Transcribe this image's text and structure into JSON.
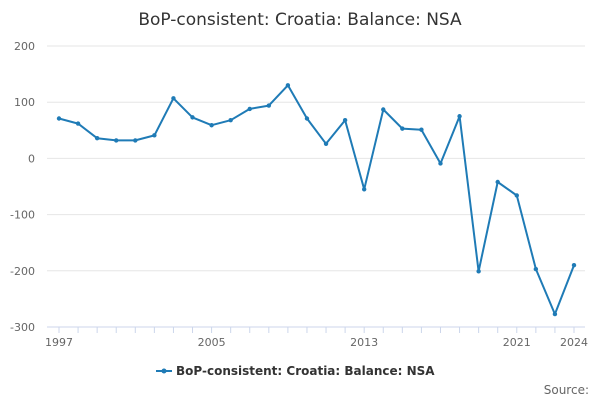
{
  "chart_data": {
    "type": "line",
    "title": "BoP-consistent: Croatia: Balance: NSA",
    "xlabel": "",
    "ylabel": "",
    "x": [
      1997,
      1998,
      1999,
      2000,
      2001,
      2002,
      2003,
      2004,
      2005,
      2006,
      2007,
      2008,
      2009,
      2010,
      2011,
      2012,
      2013,
      2014,
      2015,
      2016,
      2017,
      2018,
      2019,
      2020,
      2021,
      2022,
      2023,
      2024
    ],
    "series": [
      {
        "name": "BoP-consistent: Croatia: Balance: NSA",
        "color": "#1f7bb6",
        "values": [
          71,
          62,
          36,
          32,
          32,
          41,
          107,
          73,
          59,
          68,
          88,
          94,
          130,
          71,
          26,
          68,
          -55,
          87,
          53,
          51,
          -9,
          75,
          -201,
          -42,
          -66,
          -197,
          -277,
          -190
        ]
      }
    ],
    "ylim": [
      -300,
      200
    ],
    "y_ticks": [
      200,
      100,
      0,
      -100,
      -200,
      -300
    ],
    "x_tick_labels": [
      1997,
      2005,
      2013,
      2021,
      2024
    ],
    "grid": true,
    "legend_position": "bottom-center"
  },
  "source_label": "Source:"
}
